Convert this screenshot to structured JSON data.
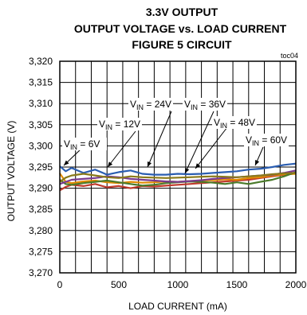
{
  "title_lines": [
    "3.3V OUTPUT",
    "OUTPUT VOLTAGE vs. LOAD CURRENT",
    "FIGURE 5 CIRCUIT"
  ],
  "figure_code": "toc04",
  "chart_data": {
    "type": "line",
    "xlabel": "LOAD CURRENT (mA)",
    "ylabel": "OUTPUT VOLTAGE (V)",
    "xlim": [
      0,
      2000
    ],
    "ylim": [
      3.27,
      3.32
    ],
    "x_ticks": [
      "0",
      "500",
      "1000",
      "1500",
      "2000"
    ],
    "y_ticks": [
      "3,270",
      "3,275",
      "3,280",
      "3,285",
      "3,290",
      "3,295",
      "3,300",
      "3,305",
      "3,310",
      "3,315",
      "3,320"
    ],
    "grid": true,
    "series": [
      {
        "name": "VIN = 6V",
        "sym": "V",
        "sub": "IN",
        "val": " = 6V",
        "color": "#c0392b",
        "x": [
          0,
          50,
          100,
          200,
          300,
          400,
          500,
          600,
          700,
          800,
          900,
          1000,
          1100,
          1200,
          1300,
          1400,
          1500,
          1600,
          1700,
          1800,
          1900,
          2000
        ],
        "y": [
          3.2895,
          3.2903,
          3.2908,
          3.2905,
          3.291,
          3.2902,
          3.2905,
          3.29,
          3.2905,
          3.2904,
          3.2906,
          3.2908,
          3.291,
          3.2912,
          3.2914,
          3.2916,
          3.2918,
          3.292,
          3.2924,
          3.2928,
          3.2932,
          3.2935
        ]
      },
      {
        "name": "VIN = 12V",
        "sym": "V",
        "sub": "IN",
        "val": " = 12V",
        "color": "#e08a00",
        "x": [
          0,
          50,
          100,
          200,
          300,
          400,
          500,
          600,
          700,
          800,
          900,
          1000,
          1100,
          1200,
          1300,
          1400,
          1500,
          1600,
          1700,
          1800,
          1900,
          2000
        ],
        "y": [
          3.2935,
          3.2915,
          3.2912,
          3.2916,
          3.2918,
          3.2914,
          3.2912,
          3.2915,
          3.2913,
          3.2914,
          3.2916,
          3.2915,
          3.2917,
          3.2918,
          3.2919,
          3.2921,
          3.292,
          3.2924,
          3.2926,
          3.293,
          3.2933,
          3.2934
        ]
      },
      {
        "name": "VIN = 24V",
        "sym": "V",
        "sub": "IN",
        "val": " = 24V",
        "color": "#4a7a2a",
        "x": [
          0,
          50,
          100,
          200,
          300,
          400,
          500,
          600,
          700,
          800,
          900,
          1000,
          1100,
          1200,
          1300,
          1400,
          1500,
          1600,
          1700,
          1800,
          1900,
          2000
        ],
        "y": [
          3.292,
          3.291,
          3.2908,
          3.2912,
          3.2915,
          3.2918,
          3.2914,
          3.291,
          3.2906,
          3.2908,
          3.2912,
          3.2914,
          3.2916,
          3.2915,
          3.2913,
          3.291,
          3.2914,
          3.291,
          3.2915,
          3.292,
          3.2928,
          3.2938
        ]
      },
      {
        "name": "VIN = 36V",
        "sym": "V",
        "sub": "IN",
        "val": " = 36V",
        "color": "#7a3b8f",
        "x": [
          0,
          50,
          100,
          200,
          300,
          400,
          500,
          600,
          700,
          800,
          900,
          1000,
          1100,
          1200,
          1300,
          1400,
          1500,
          1600,
          1700,
          1800,
          1900,
          2000
        ],
        "y": [
          3.291,
          3.2915,
          3.292,
          3.2922,
          3.2924,
          3.2928,
          3.2926,
          3.2922,
          3.292,
          3.2918,
          3.2916,
          3.2915,
          3.2917,
          3.2919,
          3.2922,
          3.2924,
          3.2926,
          3.2928,
          3.293,
          3.2932,
          3.2936,
          3.2942
        ]
      },
      {
        "name": "VIN = 48V",
        "sym": "V",
        "sub": "IN",
        "val": " = 48V",
        "color": "#2a5db0",
        "x": [
          0,
          50,
          100,
          200,
          300,
          400,
          500,
          600,
          700,
          800,
          900,
          1000,
          1100,
          1200,
          1300,
          1400,
          1500,
          1600,
          1700,
          1800,
          1900,
          2000
        ],
        "y": [
          3.2952,
          3.294,
          3.2948,
          3.2936,
          3.2944,
          3.2932,
          3.2938,
          3.2942,
          3.2934,
          3.2932,
          3.2932,
          3.2934,
          3.2933,
          3.2934,
          3.2936,
          3.2938,
          3.294,
          3.2944,
          3.2946,
          3.295,
          3.2955,
          3.2958
        ]
      },
      {
        "name": "VIN = 60V",
        "sym": "V",
        "sub": "IN",
        "val": " = 60V",
        "color": "#8a7a1a",
        "x": [
          0,
          50,
          100,
          200,
          300,
          400,
          500,
          600,
          700,
          800,
          900,
          1000,
          1100,
          1200,
          1300,
          1400,
          1500,
          1600,
          1700,
          1800,
          1900,
          2000
        ],
        "y": [
          3.2915,
          3.2925,
          3.293,
          3.2934,
          3.293,
          3.2926,
          3.2924,
          3.2928,
          3.2926,
          3.2925,
          3.2924,
          3.2925,
          3.2926,
          3.2927,
          3.2928,
          3.2927,
          3.2926,
          3.2928,
          3.293,
          3.2933,
          3.2935,
          3.2936
        ]
      }
    ]
  }
}
